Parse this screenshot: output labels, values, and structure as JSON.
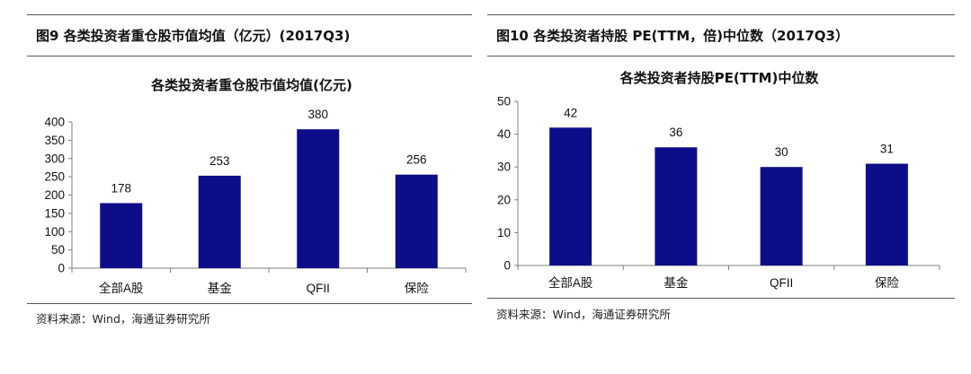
{
  "colors": {
    "bar": "#0d0d8a",
    "axis": "#808080",
    "rule": "#555555"
  },
  "left": {
    "figure_title": "图9  各类投资者重仓股市值均值（亿元）(2017Q3)",
    "source": "资料来源：Wind，海通证券研究所"
  },
  "right": {
    "figure_title": "图10 各类投资者持股 PE(TTM，倍)中位数（2017Q3）",
    "source": "资料来源：Wind，海通证券研究所"
  },
  "chart_data": [
    {
      "type": "bar",
      "title": "各类投资者重仓股市值均值(亿元)",
      "categories": [
        "全部A股",
        "基金",
        "QFII",
        "保险"
      ],
      "values": [
        178,
        253,
        380,
        256
      ],
      "data_labels": [
        "178",
        "253",
        "380",
        "256"
      ],
      "ylim": [
        0,
        400
      ],
      "yticks": [
        0,
        50,
        100,
        150,
        200,
        250,
        300,
        350,
        400
      ],
      "xlabel": "",
      "ylabel": "",
      "grid": false,
      "legend": "none"
    },
    {
      "type": "bar",
      "title": "各类投资者持股PE(TTM)中位数",
      "categories": [
        "全部A股",
        "基金",
        "QFII",
        "保险"
      ],
      "values": [
        42,
        36,
        30,
        31
      ],
      "data_labels": [
        "42",
        "36",
        "30",
        "31"
      ],
      "ylim": [
        0,
        50
      ],
      "yticks": [
        0,
        10,
        20,
        30,
        40,
        50
      ],
      "xlabel": "",
      "ylabel": "",
      "grid": false,
      "legend": "none"
    }
  ]
}
